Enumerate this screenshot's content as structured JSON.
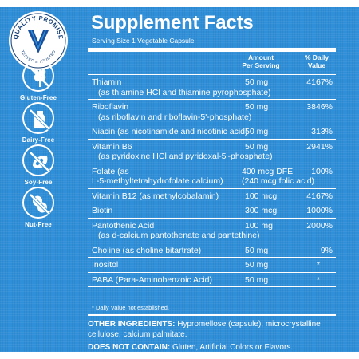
{
  "seal": {
    "text": "QUALITY PROMISE",
    "subtext": "TESTED & TRUSTED"
  },
  "badges": [
    {
      "label": "Gluten-Free",
      "icon": "wheat-icon"
    },
    {
      "label": "Dairy-Free",
      "icon": "milk-bottle-icon"
    },
    {
      "label": "Soy-Free",
      "icon": "soybean-icon"
    },
    {
      "label": "Nut-Free",
      "icon": "peanut-icon"
    }
  ],
  "panel": {
    "title": "Supplement Facts",
    "serving": "Serving Size 1 Vegetable Capsule",
    "col_amount_l1": "Amount",
    "col_amount_l2": "Per Serving",
    "col_dv_l1": "% Daily",
    "col_dv_l2": "Value",
    "rows": [
      {
        "name": "Thiamin",
        "sub": "(as thiamine HCl and thiamine pyrophosphate)",
        "amount": "50 mg",
        "dv": "4167%"
      },
      {
        "name": "Riboflavin",
        "sub": "(as riboflavin and riboflavin-5'-phosphate)",
        "amount": "50 mg",
        "dv": "3846%"
      },
      {
        "name": "Niacin (as nicotinamide and nicotinic acid)",
        "amount": "50 mg",
        "dv": "313%"
      },
      {
        "name": "Vitamin B6",
        "sub": "(as pyridoxine HCl and pyridoxal-5'-phosphate)",
        "amount": "50 mg",
        "dv": "2941%"
      },
      {
        "name": "Folate (as",
        "sub": "L-5-methyltetrahydrofolate calcium)",
        "amount": "400 mcg DFE",
        "amount2": "(240 mcg folic acid)",
        "dv": "100%"
      },
      {
        "name": "Vitamin B12 (as methylcobalamin)",
        "amount": "100 mcg",
        "dv": "4167%"
      },
      {
        "name": "Biotin",
        "amount": "300 mcg",
        "dv": "1000%"
      },
      {
        "name": "Pantothenic Acid",
        "sub": "(as d-calcium pantothenate and pantethine)",
        "amount": "100 mg",
        "dv": "2000%"
      },
      {
        "name": "Choline (as choline bitartrate)",
        "amount": "50 mg",
        "dv": "9%"
      },
      {
        "name": "Inositol",
        "amount": "50 mg",
        "dv": "*"
      },
      {
        "name": "PABA (Para-Aminobenzoic Acid)",
        "amount": "50 mg",
        "dv": "*"
      }
    ],
    "footnote": "* Daily Value not established.",
    "other_label": "OTHER INGREDIENTS:",
    "other_text": "Hypromellose (capsule), microcrystalline cellulose, calcium palmitate.",
    "contain_label": "DOES  NOT CONTAIN:",
    "contain_text": "Gluten, Artificial Colors or Flavors."
  }
}
